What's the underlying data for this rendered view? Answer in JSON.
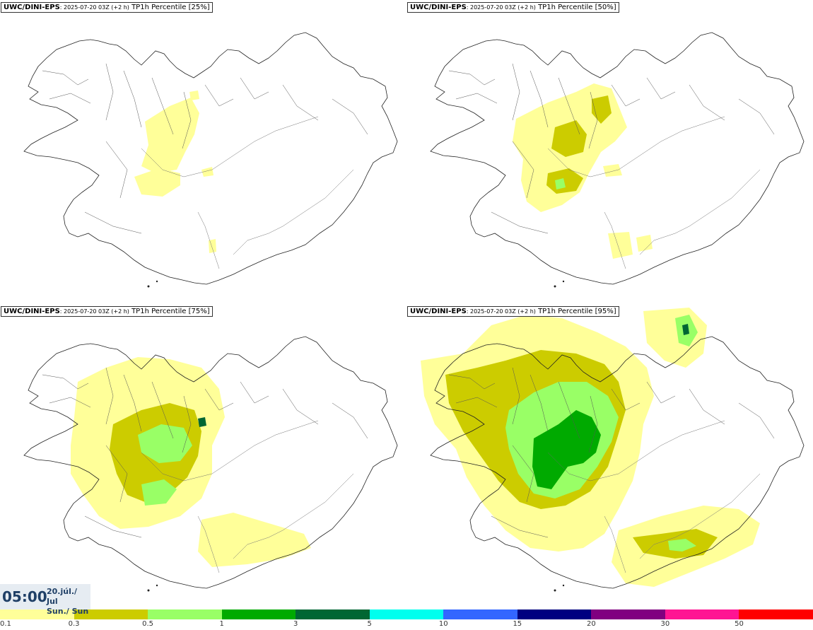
{
  "panels": [
    {
      "model": "UWC/DINI-EPS",
      "run": ": 2025-07-20 03Z (+2 h)",
      "product": "TP1h Percentile [25%]",
      "level": 1
    },
    {
      "model": "UWC/DINI-EPS",
      "run": ": 2025-07-20 03Z (+2 h)",
      "product": "TP1h Percentile [50%]",
      "level": 2
    },
    {
      "model": "UWC/DINI-EPS",
      "run": ": 2025-07-20 03Z (+2 h)",
      "product": "TP1h Percentile [75%]",
      "level": 3
    },
    {
      "model": "UWC/DINI-EPS",
      "run": ": 2025-07-20 03Z (+2 h)",
      "product": "TP1h Percentile [95%]",
      "level": 4
    }
  ],
  "valid_time": {
    "hour": "05:00",
    "date_line1": "20.júl./ Jul",
    "date_line2": "Sun./ Sun"
  },
  "legend": {
    "colors": [
      "#ffff99",
      "#cccc00",
      "#99ff66",
      "#00aa00",
      "#006633",
      "#00ffee",
      "#3366ff",
      "#000080",
      "#800080",
      "#ff1493",
      "#ff0000"
    ],
    "labels": [
      "0.1",
      "0.3",
      "0.5",
      "1",
      "3",
      "5",
      "10",
      "15",
      "20",
      "30",
      "50"
    ]
  }
}
